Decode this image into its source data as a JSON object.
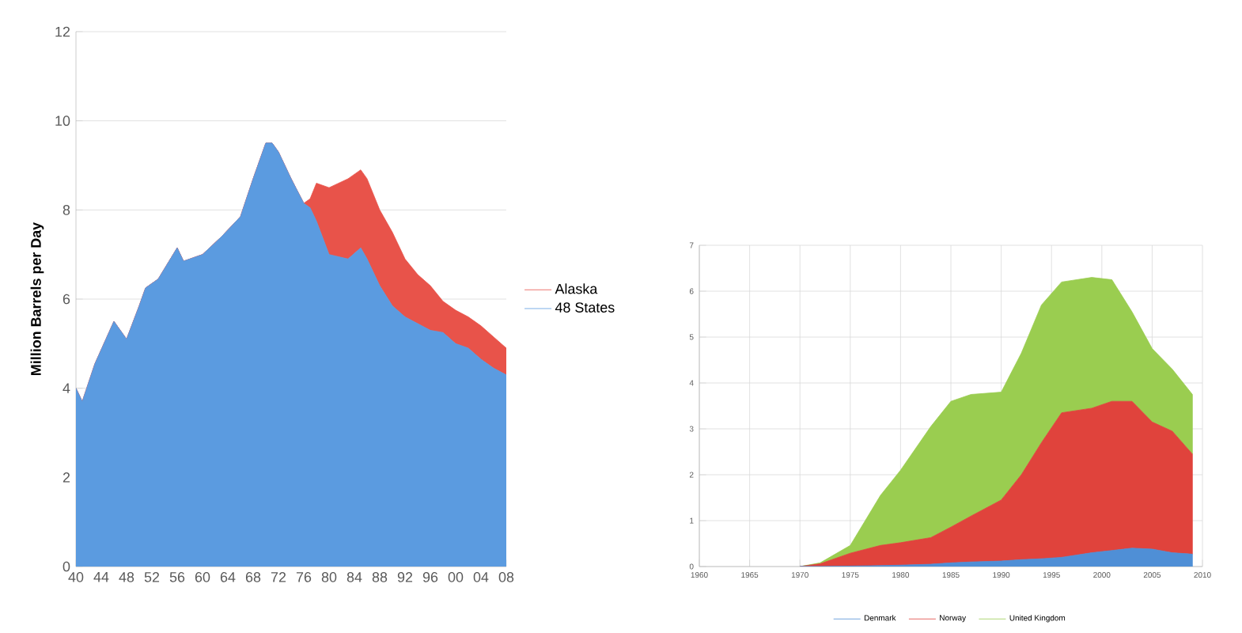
{
  "chart_data": [
    {
      "type": "area",
      "stacked": true,
      "ylabel": "Million Barrels per Day",
      "xlim": [
        1940,
        2008
      ],
      "ylim": [
        0,
        12
      ],
      "xticks": [
        {
          "value": 1940,
          "label": "40"
        },
        {
          "value": 1944,
          "label": "44"
        },
        {
          "value": 1948,
          "label": "48"
        },
        {
          "value": 1952,
          "label": "52"
        },
        {
          "value": 1956,
          "label": "56"
        },
        {
          "value": 1960,
          "label": "60"
        },
        {
          "value": 1964,
          "label": "64"
        },
        {
          "value": 1968,
          "label": "68"
        },
        {
          "value": 1972,
          "label": "72"
        },
        {
          "value": 1976,
          "label": "76"
        },
        {
          "value": 1980,
          "label": "80"
        },
        {
          "value": 1984,
          "label": "84"
        },
        {
          "value": 1988,
          "label": "88"
        },
        {
          "value": 1992,
          "label": "92"
        },
        {
          "value": 1996,
          "label": "96"
        },
        {
          "value": 2000,
          "label": "00"
        },
        {
          "value": 2004,
          "label": "04"
        },
        {
          "value": 2008,
          "label": "08"
        }
      ],
      "yticks": [
        0,
        2,
        4,
        6,
        8,
        10,
        12
      ],
      "grid": "y",
      "legend": "right",
      "x": [
        1940,
        1941,
        1943,
        1946,
        1948,
        1950,
        1951,
        1953,
        1956,
        1957,
        1960,
        1963,
        1966,
        1968,
        1970,
        1971,
        1972,
        1974,
        1976,
        1977,
        1978,
        1980,
        1983,
        1985,
        1986,
        1988,
        1990,
        1992,
        1994,
        1996,
        1998,
        2000,
        2002,
        2004,
        2006,
        2008
      ],
      "series": [
        {
          "name": "48 States",
          "color": "#5b9be0",
          "values": [
            4.0,
            3.7,
            4.55,
            5.5,
            5.1,
            5.85,
            6.25,
            6.45,
            7.15,
            6.85,
            7.0,
            7.4,
            7.85,
            8.7,
            9.5,
            9.5,
            9.3,
            8.7,
            8.15,
            8.05,
            7.75,
            7.0,
            6.9,
            7.15,
            6.9,
            6.3,
            5.85,
            5.6,
            5.45,
            5.3,
            5.25,
            5.0,
            4.9,
            4.65,
            4.45,
            4.3
          ]
        },
        {
          "name": "Alaska",
          "color": "#e8534a",
          "values": [
            0,
            0,
            0,
            0,
            0,
            0,
            0,
            0,
            0,
            0,
            0,
            0,
            0,
            0,
            0,
            0,
            0,
            0,
            0,
            0.2,
            0.85,
            1.5,
            1.8,
            1.75,
            1.8,
            1.7,
            1.65,
            1.3,
            1.1,
            1.0,
            0.7,
            0.75,
            0.7,
            0.75,
            0.7,
            0.6
          ]
        }
      ]
    },
    {
      "type": "area",
      "stacked": true,
      "xlim": [
        1960,
        2010
      ],
      "ylim": [
        0,
        7
      ],
      "xticks": [
        1960,
        1965,
        1970,
        1975,
        1980,
        1985,
        1990,
        1995,
        2000,
        2005,
        2010
      ],
      "yticks": [
        0,
        1,
        2,
        3,
        4,
        5,
        6,
        7
      ],
      "grid": true,
      "legend": "bottom",
      "x": [
        1970,
        1972,
        1975,
        1978,
        1980,
        1983,
        1985,
        1987,
        1990,
        1992,
        1994,
        1996,
        1999,
        2001,
        2003,
        2005,
        2007,
        2009
      ],
      "series": [
        {
          "name": "Denmark",
          "color": "#4f8fd6",
          "values": [
            0,
            0,
            0.01,
            0.02,
            0.03,
            0.05,
            0.08,
            0.1,
            0.12,
            0.15,
            0.17,
            0.2,
            0.3,
            0.35,
            0.4,
            0.38,
            0.3,
            0.27
          ]
        },
        {
          "name": "Norway",
          "color": "#e0433c",
          "values": [
            0,
            0.06,
            0.28,
            0.44,
            0.49,
            0.58,
            0.78,
            1.0,
            1.33,
            1.85,
            2.53,
            3.15,
            3.15,
            3.25,
            3.2,
            2.77,
            2.65,
            2.18
          ]
        },
        {
          "name": "United Kingdom",
          "color": "#9acd50",
          "values": [
            0,
            0.02,
            0.17,
            1.09,
            1.58,
            2.42,
            2.74,
            2.65,
            2.35,
            2.65,
            3.0,
            2.85,
            2.85,
            2.65,
            1.95,
            1.6,
            1.35,
            1.3
          ]
        }
      ]
    }
  ]
}
